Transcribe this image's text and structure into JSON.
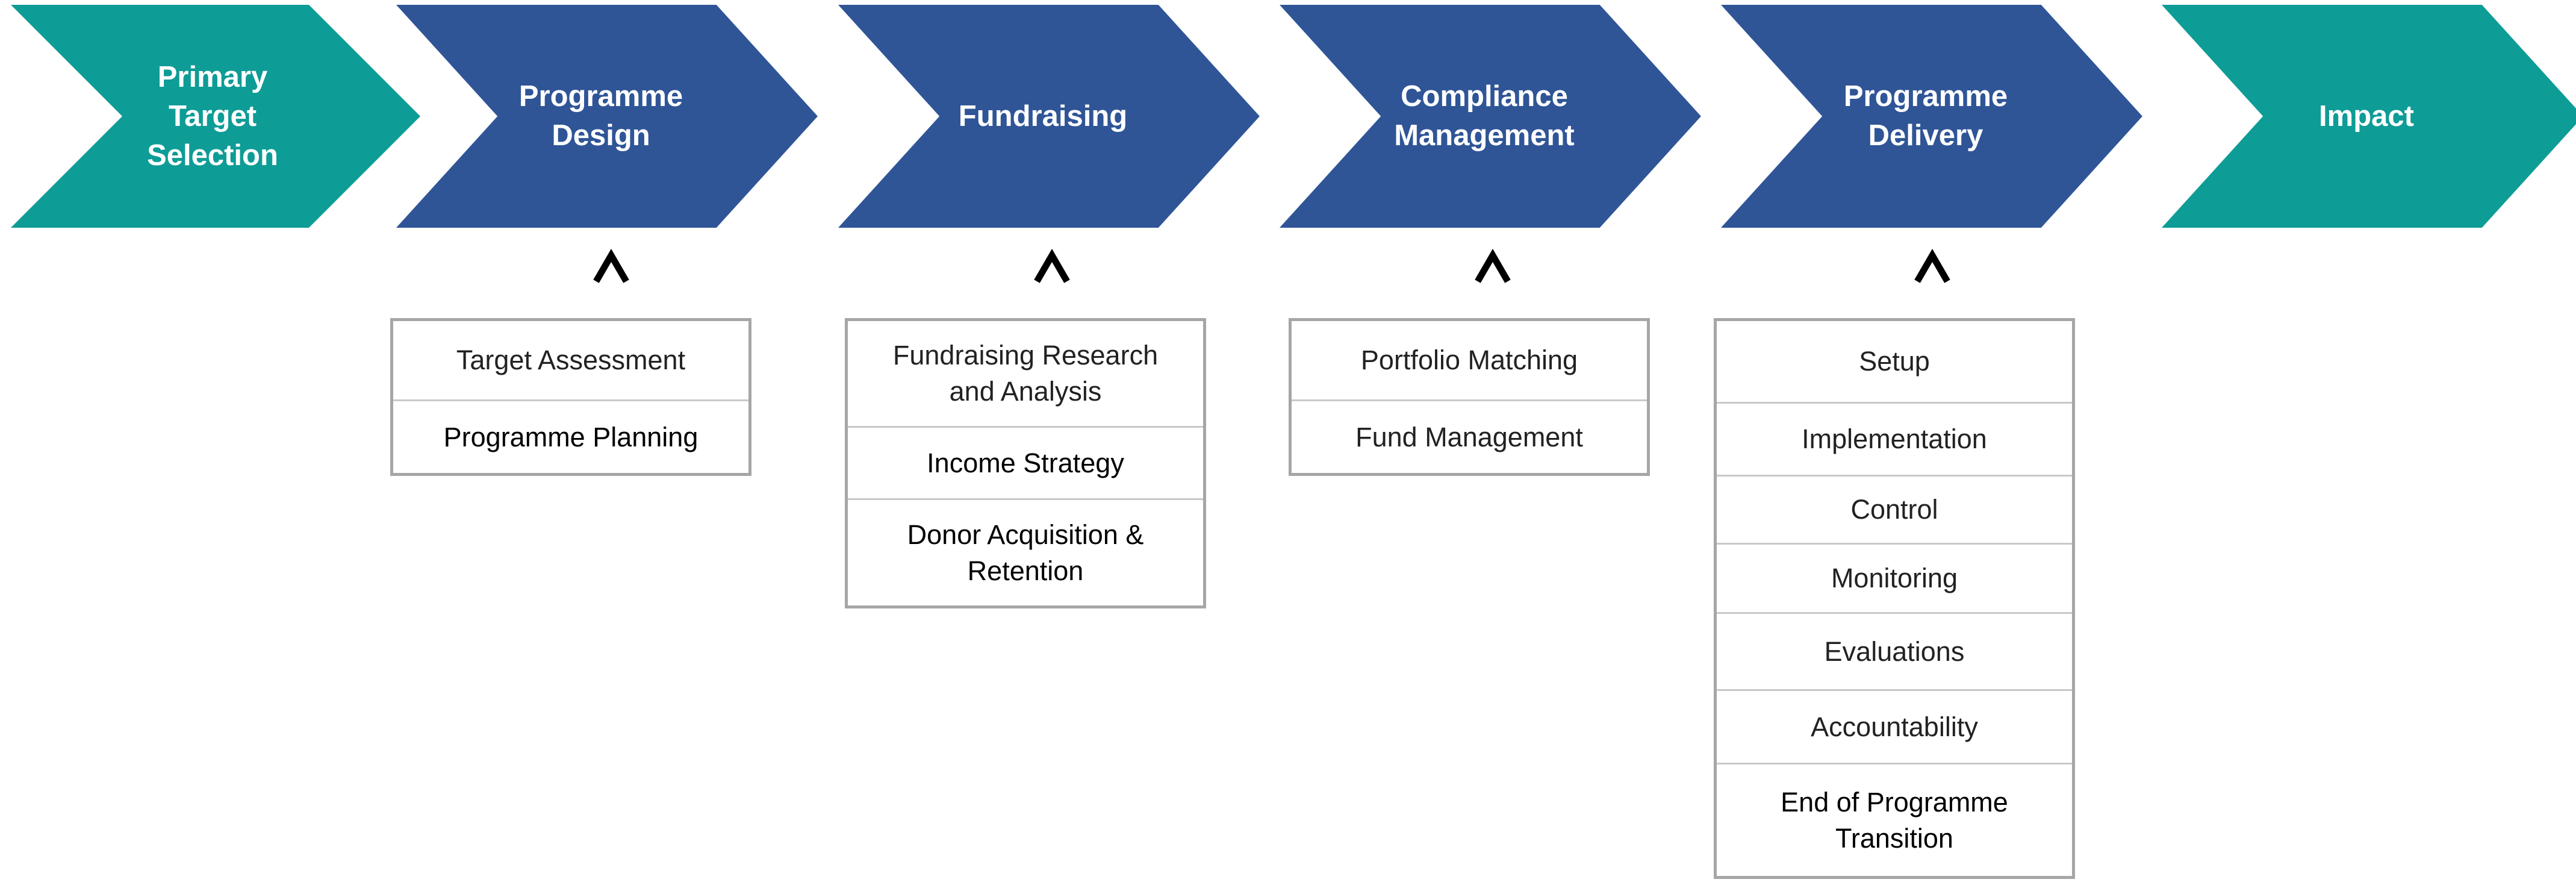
{
  "colors": {
    "teal": "#0e9c96",
    "blue": "#2f5597",
    "box_border": "#a6a6a6",
    "divider": "#c8c8c8"
  },
  "stages": [
    {
      "label": "Primary\nTarget\nSelection",
      "color": "teal"
    },
    {
      "label": "Programme\nDesign",
      "color": "blue"
    },
    {
      "label": "Fundraising",
      "color": "blue"
    },
    {
      "label": "Compliance\nManagement",
      "color": "blue"
    },
    {
      "label": "Programme\nDelivery",
      "color": "blue"
    },
    {
      "label": "Impact",
      "color": "teal"
    }
  ],
  "caret_symbol": "^",
  "sub_lists": [
    {
      "stage": "Programme Design",
      "items": [
        "Target Assessment",
        "Programme Planning"
      ]
    },
    {
      "stage": "Fundraising",
      "items": [
        "Fundraising Research\nand Analysis",
        "Income Strategy",
        "Donor Acquisition &\nRetention"
      ]
    },
    {
      "stage": "Compliance Management",
      "items": [
        "Portfolio Matching",
        "Fund Management"
      ]
    },
    {
      "stage": "Programme Delivery",
      "items": [
        "Setup",
        "Implementation",
        "Control",
        "Monitoring",
        "Evaluations",
        "Accountability",
        "End of Programme\nTransition"
      ]
    }
  ]
}
